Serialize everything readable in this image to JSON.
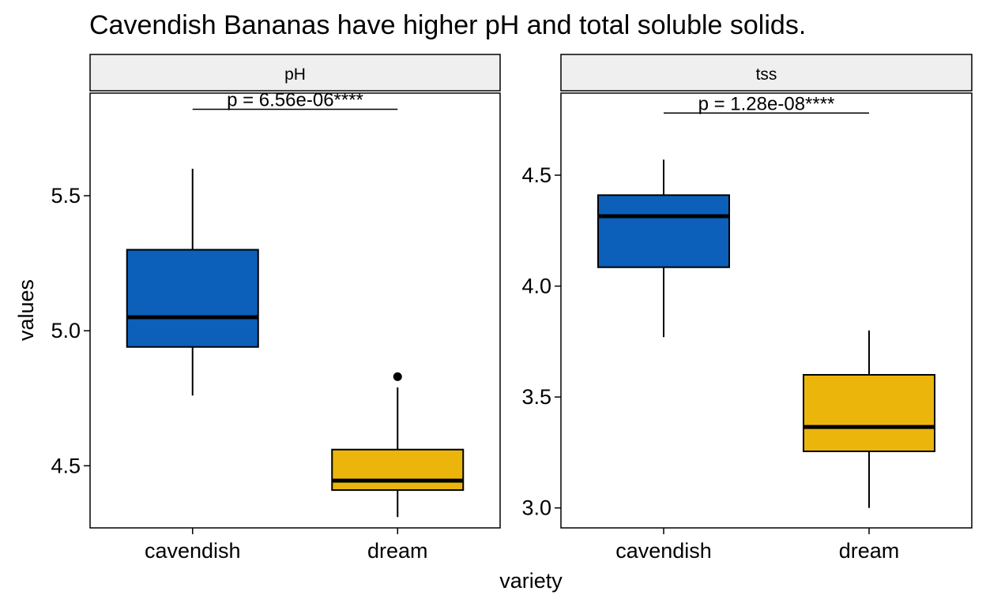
{
  "chart_data": {
    "type": "boxplot",
    "title": "Cavendish Bananas have higher pH and total soluble solids.",
    "xlabel": "variety",
    "ylabel": "values",
    "categories": [
      "cavendish",
      "dream"
    ],
    "colors": {
      "cavendish": "#0C60BA",
      "dream": "#EBB50C"
    },
    "facets": [
      {
        "label": "pH",
        "ylim": [
          4.27,
          5.88
        ],
        "yticks": [
          4.5,
          5.0,
          5.5
        ],
        "ytick_labels": [
          "4.5",
          "5.0",
          "5.5"
        ],
        "pvalue": "p = 6.56e-06****",
        "pvalue_y": 5.82,
        "boxes": [
          {
            "category": "cavendish",
            "low": 4.76,
            "q1": 4.94,
            "median": 5.05,
            "q3": 5.3,
            "high": 5.6,
            "outliers": []
          },
          {
            "category": "dream",
            "low": 4.31,
            "q1": 4.41,
            "median": 4.445,
            "q3": 4.56,
            "high": 4.79,
            "outliers": [
              4.83
            ]
          }
        ]
      },
      {
        "label": "tss",
        "ylim": [
          2.91,
          4.87
        ],
        "yticks": [
          3.0,
          3.5,
          4.0,
          4.5
        ],
        "ytick_labels": [
          "3.0",
          "3.5",
          "4.0",
          "4.5"
        ],
        "pvalue": "p = 1.28e-08****",
        "pvalue_y": 4.78,
        "boxes": [
          {
            "category": "cavendish",
            "low": 3.77,
            "q1": 4.085,
            "median": 4.315,
            "q3": 4.41,
            "high": 4.57,
            "outliers": []
          },
          {
            "category": "dream",
            "low": 3.0,
            "q1": 3.255,
            "median": 3.365,
            "q3": 3.6,
            "high": 3.8,
            "outliers": []
          }
        ]
      }
    ]
  }
}
